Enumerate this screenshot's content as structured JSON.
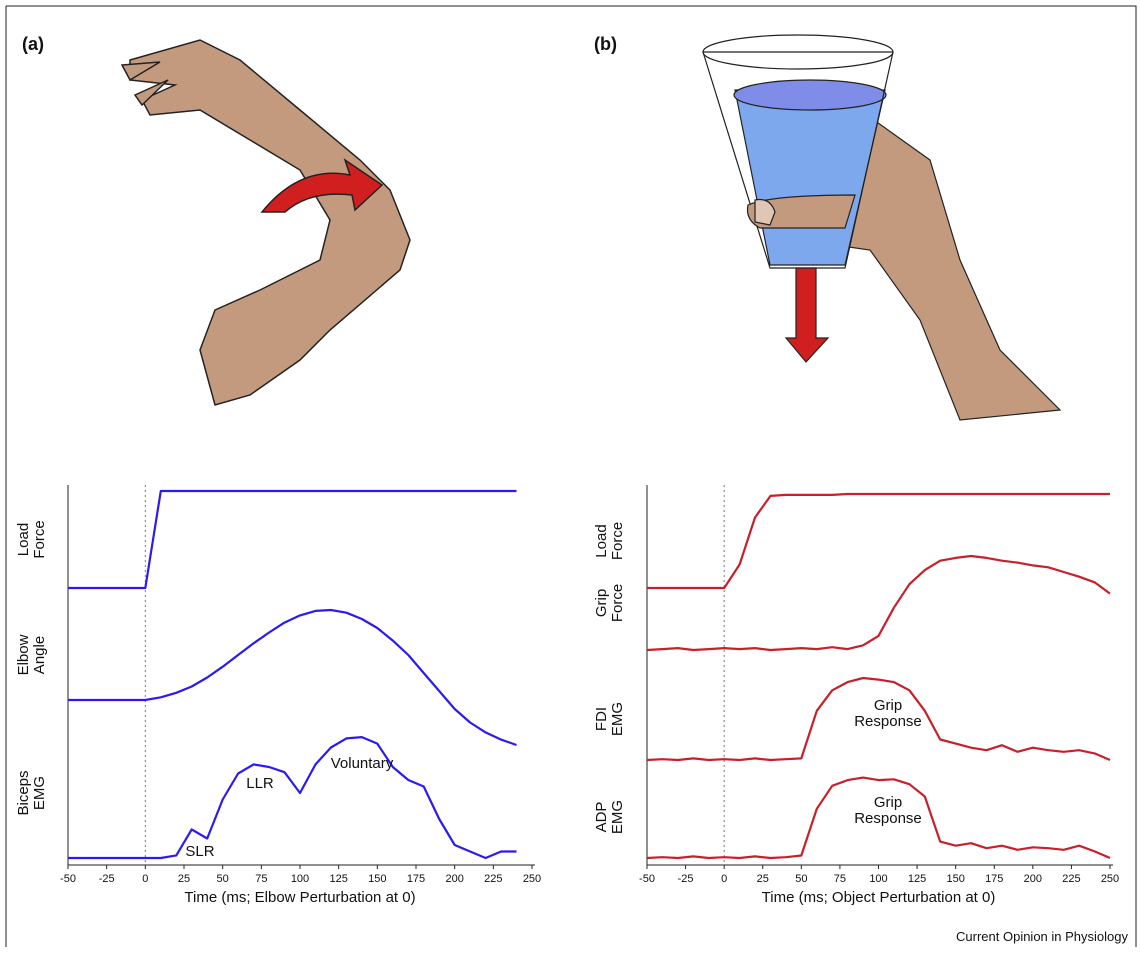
{
  "panel_labels": [
    "(a)",
    "(b)"
  ],
  "credit": "Current Opinion in Physiology",
  "chart_data": [
    {
      "type": "line",
      "xlabel": "Time (ms; Elbow Perturbation at 0)",
      "xlim": [
        -50,
        250
      ],
      "xticks": [
        -50,
        -25,
        0,
        25,
        50,
        75,
        100,
        125,
        150,
        175,
        200,
        225,
        250
      ],
      "reference_line_x": 0,
      "x": [
        -50,
        -40,
        -30,
        -20,
        -10,
        0,
        10,
        20,
        30,
        40,
        50,
        60,
        70,
        80,
        90,
        100,
        110,
        120,
        130,
        140,
        150,
        160,
        170,
        180,
        190,
        200,
        210,
        220,
        230,
        240
      ],
      "series": [
        {
          "name": "Load Force",
          "color": "#2b1bf0",
          "values": [
            0,
            0,
            0,
            0,
            0,
            0,
            1,
            1,
            1,
            1,
            1,
            1,
            1,
            1,
            1,
            1,
            1,
            1,
            1,
            1,
            1,
            1,
            1,
            1,
            1,
            1,
            1,
            1,
            1,
            1
          ]
        },
        {
          "name": "Elbow Angle",
          "color": "#2b1bf0",
          "values": [
            0,
            0,
            0,
            0,
            0,
            0,
            0.03,
            0.08,
            0.15,
            0.25,
            0.37,
            0.5,
            0.63,
            0.75,
            0.86,
            0.94,
            0.99,
            1,
            0.97,
            0.9,
            0.8,
            0.66,
            0.5,
            0.3,
            0.1,
            -0.1,
            -0.25,
            -0.36,
            -0.44,
            -0.5
          ]
        },
        {
          "name": "Biceps EMG",
          "color": "#2b1bf0",
          "values": [
            0,
            0,
            0,
            0,
            0,
            0,
            0,
            0.02,
            0.22,
            0.15,
            0.45,
            0.65,
            0.72,
            0.7,
            0.66,
            0.5,
            0.72,
            0.85,
            0.92,
            0.93,
            0.88,
            0.7,
            0.6,
            0.55,
            0.3,
            0.1,
            0.05,
            0,
            0.05,
            0.05
          ]
        }
      ],
      "annotations": [
        "SLR",
        "LLR",
        "Voluntary"
      ]
    },
    {
      "type": "line",
      "xlabel": "Time (ms; Object Perturbation at 0)",
      "xlim": [
        -50,
        250
      ],
      "xticks": [
        -50,
        -25,
        0,
        25,
        50,
        75,
        100,
        125,
        150,
        175,
        200,
        225,
        250
      ],
      "reference_line_x": 0,
      "x": [
        -50,
        -40,
        -30,
        -20,
        -10,
        0,
        10,
        20,
        30,
        40,
        50,
        60,
        70,
        80,
        90,
        100,
        110,
        120,
        130,
        140,
        150,
        160,
        170,
        180,
        190,
        200,
        210,
        220,
        230,
        240,
        250
      ],
      "series": [
        {
          "name": "Load Force",
          "color": "#c8202a",
          "values": [
            0,
            0,
            0,
            0,
            0,
            0,
            0.25,
            0.75,
            0.98,
            0.99,
            0.99,
            0.99,
            0.99,
            1,
            1,
            1,
            1,
            1,
            1,
            1,
            1,
            1,
            1,
            1,
            1,
            1,
            1,
            1,
            1,
            1,
            1
          ]
        },
        {
          "name": "Grip Force",
          "color": "#c8202a",
          "values": [
            0,
            0.01,
            0.02,
            0,
            0.01,
            0.02,
            0.01,
            0.02,
            0,
            0.01,
            0.02,
            0.01,
            0.03,
            0.01,
            0.05,
            0.15,
            0.45,
            0.7,
            0.85,
            0.95,
            0.98,
            1,
            0.98,
            0.95,
            0.93,
            0.9,
            0.88,
            0.83,
            0.78,
            0.72,
            0.6
          ]
        },
        {
          "name": "FDI EMG",
          "color": "#c8202a",
          "values": [
            0,
            0.01,
            0,
            0.02,
            0,
            0.01,
            0,
            0.02,
            0,
            0.01,
            0.02,
            0.6,
            0.85,
            0.95,
            1,
            0.98,
            0.95,
            0.85,
            0.6,
            0.25,
            0.2,
            0.15,
            0.12,
            0.18,
            0.1,
            0.15,
            0.12,
            0.1,
            0.12,
            0.08,
            0
          ]
        },
        {
          "name": "ADP EMG",
          "color": "#c8202a",
          "values": [
            0,
            0.01,
            0,
            0.02,
            0,
            0.01,
            0,
            0.02,
            0,
            0.01,
            0.03,
            0.6,
            0.88,
            0.95,
            0.98,
            0.95,
            0.96,
            0.9,
            0.75,
            0.2,
            0.15,
            0.18,
            0.12,
            0.15,
            0.1,
            0.13,
            0.12,
            0.1,
            0.15,
            0.08,
            0
          ]
        }
      ],
      "annotations": [
        "Grip Response",
        "Grip Response"
      ]
    }
  ]
}
